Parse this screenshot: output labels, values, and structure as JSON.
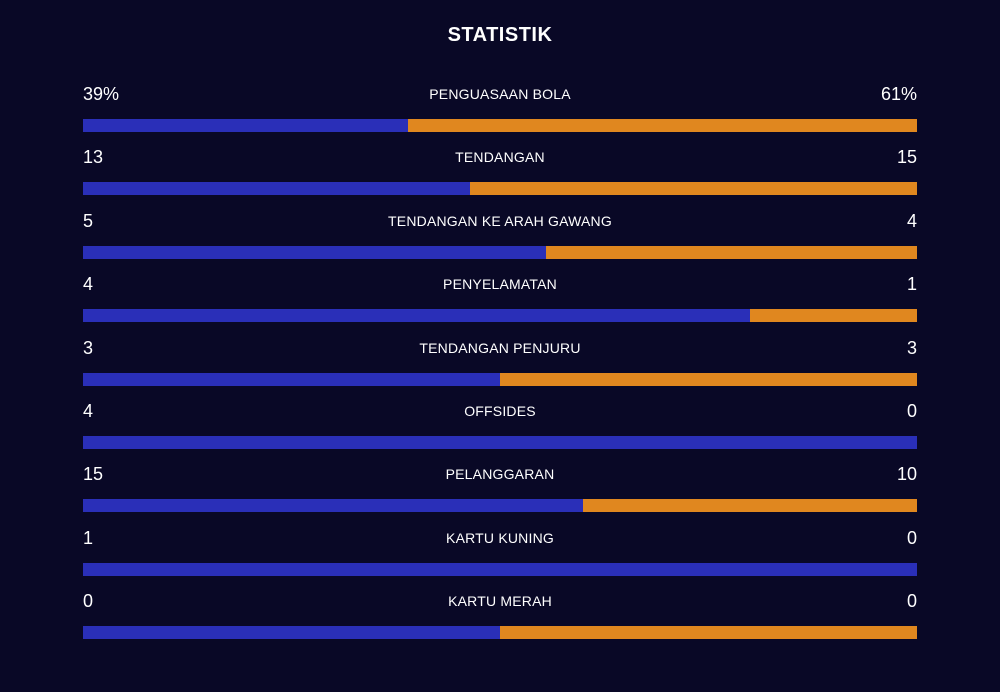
{
  "title": "STATISTIK",
  "colors": {
    "background": "#090826",
    "home": "#2a2fb8",
    "away": "#e0871f"
  },
  "stats": [
    {
      "label": "PENGUASAAN BOLA",
      "home": "39%",
      "away": "61%",
      "home_value": 39,
      "away_value": 61
    },
    {
      "label": "TENDANGAN",
      "home": "13",
      "away": "15",
      "home_value": 13,
      "away_value": 15
    },
    {
      "label": "TENDANGAN KE ARAH GAWANG",
      "home": "5",
      "away": "4",
      "home_value": 5,
      "away_value": 4
    },
    {
      "label": "PENYELAMATAN",
      "home": "4",
      "away": "1",
      "home_value": 4,
      "away_value": 1
    },
    {
      "label": "TENDANGAN PENJURU",
      "home": "3",
      "away": "3",
      "home_value": 3,
      "away_value": 3
    },
    {
      "label": "OFFSIDES",
      "home": "4",
      "away": "0",
      "home_value": 4,
      "away_value": 0
    },
    {
      "label": "PELANGGARAN",
      "home": "15",
      "away": "10",
      "home_value": 15,
      "away_value": 10
    },
    {
      "label": "KARTU KUNING",
      "home": "1",
      "away": "0",
      "home_value": 1,
      "away_value": 0
    },
    {
      "label": "KARTU MERAH",
      "home": "0",
      "away": "0",
      "home_value": 0,
      "away_value": 0
    }
  ]
}
